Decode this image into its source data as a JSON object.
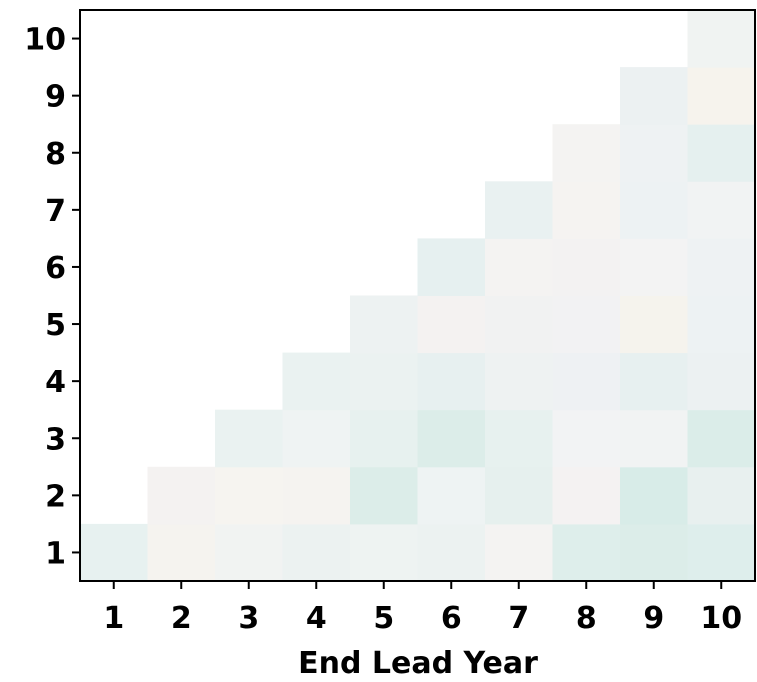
{
  "chart_data": {
    "type": "heatmap",
    "title": "",
    "xlabel": "End Lead Year",
    "ylabel": "",
    "x": [
      1,
      2,
      3,
      4,
      5,
      6,
      7,
      8,
      9,
      10
    ],
    "y": [
      1,
      2,
      3,
      4,
      5,
      6,
      7,
      8,
      9,
      10
    ],
    "cells": [
      {
        "x": 1,
        "y": 1,
        "color": "#e7f1f0"
      },
      {
        "x": 2,
        "y": 1,
        "color": "#f5f3ef"
      },
      {
        "x": 3,
        "y": 1,
        "color": "#f1f3f2"
      },
      {
        "x": 4,
        "y": 1,
        "color": "#ecf2f1"
      },
      {
        "x": 5,
        "y": 1,
        "color": "#eef3f2"
      },
      {
        "x": 6,
        "y": 1,
        "color": "#ecf2f1"
      },
      {
        "x": 7,
        "y": 1,
        "color": "#f4f3f2"
      },
      {
        "x": 8,
        "y": 1,
        "color": "#deeeeb"
      },
      {
        "x": 9,
        "y": 1,
        "color": "#dcede9"
      },
      {
        "x": 10,
        "y": 1,
        "color": "#deeeec"
      },
      {
        "x": 2,
        "y": 2,
        "color": "#f4f2f1"
      },
      {
        "x": 3,
        "y": 2,
        "color": "#f6f4f0"
      },
      {
        "x": 4,
        "y": 2,
        "color": "#f5f3f0"
      },
      {
        "x": 5,
        "y": 2,
        "color": "#dcede9"
      },
      {
        "x": 6,
        "y": 2,
        "color": "#eef3f3"
      },
      {
        "x": 7,
        "y": 2,
        "color": "#e6f0ee"
      },
      {
        "x": 8,
        "y": 2,
        "color": "#f4f2f2"
      },
      {
        "x": 9,
        "y": 2,
        "color": "#d8ece8"
      },
      {
        "x": 10,
        "y": 2,
        "color": "#e8f0ef"
      },
      {
        "x": 3,
        "y": 3,
        "color": "#eaf2f1"
      },
      {
        "x": 4,
        "y": 3,
        "color": "#eff3f3"
      },
      {
        "x": 5,
        "y": 3,
        "color": "#e7f1ef"
      },
      {
        "x": 6,
        "y": 3,
        "color": "#dcede9"
      },
      {
        "x": 7,
        "y": 3,
        "color": "#e7f1ef"
      },
      {
        "x": 8,
        "y": 3,
        "color": "#f2f3f4"
      },
      {
        "x": 9,
        "y": 3,
        "color": "#f1f3f3"
      },
      {
        "x": 10,
        "y": 3,
        "color": "#dbede9"
      },
      {
        "x": 4,
        "y": 4,
        "color": "#eaf2f1"
      },
      {
        "x": 5,
        "y": 4,
        "color": "#ebf2f1"
      },
      {
        "x": 6,
        "y": 4,
        "color": "#e7f0f0"
      },
      {
        "x": 7,
        "y": 4,
        "color": "#eef2f2"
      },
      {
        "x": 8,
        "y": 4,
        "color": "#eef1f3"
      },
      {
        "x": 9,
        "y": 4,
        "color": "#e7f0f0"
      },
      {
        "x": 10,
        "y": 4,
        "color": "#ecf1f2"
      },
      {
        "x": 5,
        "y": 5,
        "color": "#edf2f2"
      },
      {
        "x": 6,
        "y": 5,
        "color": "#f4f2f1"
      },
      {
        "x": 7,
        "y": 5,
        "color": "#f1f2f2"
      },
      {
        "x": 8,
        "y": 5,
        "color": "#f2f2f3"
      },
      {
        "x": 9,
        "y": 5,
        "color": "#f5f3ed"
      },
      {
        "x": 10,
        "y": 5,
        "color": "#edf2f3"
      },
      {
        "x": 6,
        "y": 6,
        "color": "#e6f0f0"
      },
      {
        "x": 7,
        "y": 6,
        "color": "#f4f3f2"
      },
      {
        "x": 8,
        "y": 6,
        "color": "#f3f2f2"
      },
      {
        "x": 9,
        "y": 6,
        "color": "#f3f3f3"
      },
      {
        "x": 10,
        "y": 6,
        "color": "#eef2f3"
      },
      {
        "x": 7,
        "y": 7,
        "color": "#e9f1f1"
      },
      {
        "x": 8,
        "y": 7,
        "color": "#f5f3f1"
      },
      {
        "x": 9,
        "y": 7,
        "color": "#edf2f3"
      },
      {
        "x": 10,
        "y": 7,
        "color": "#f1f3f3"
      },
      {
        "x": 8,
        "y": 8,
        "color": "#f4f3f2"
      },
      {
        "x": 9,
        "y": 8,
        "color": "#eef2f3"
      },
      {
        "x": 10,
        "y": 8,
        "color": "#e5f0ef"
      },
      {
        "x": 9,
        "y": 9,
        "color": "#ecf1f2"
      },
      {
        "x": 10,
        "y": 9,
        "color": "#f6f3ed"
      },
      {
        "x": 10,
        "y": 10,
        "color": "#f0f3f2"
      }
    ]
  }
}
